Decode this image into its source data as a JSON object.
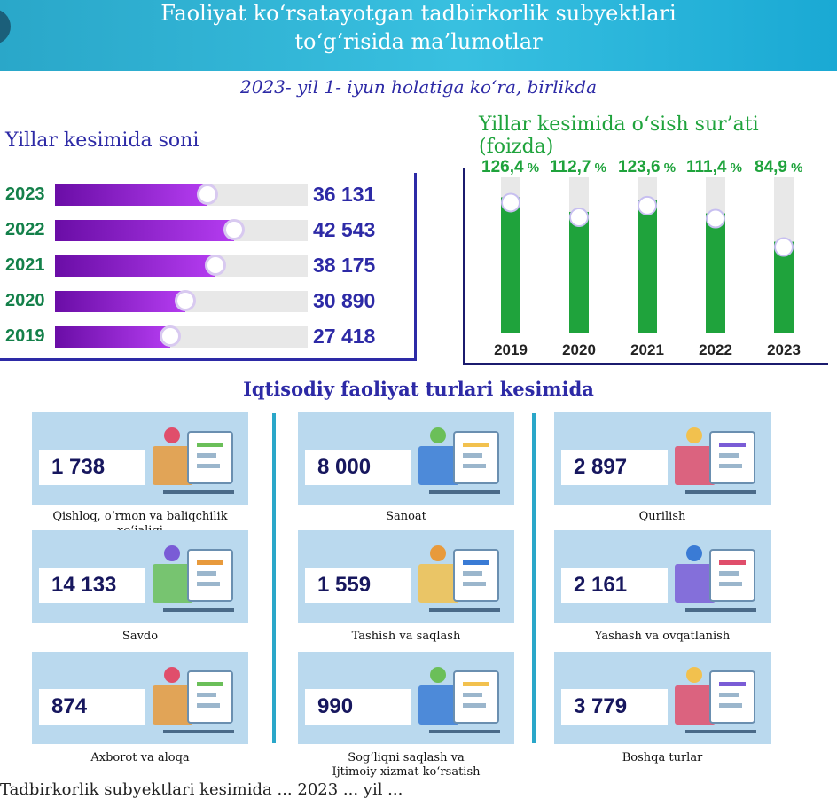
{
  "header": {
    "title_line1": "Faoliyat ko‘rsatayotgan tadbirkorlik subyektlari",
    "title_line2": "to‘g‘risida ma’lumotlar",
    "subtitle": "2023- yil 1- iyun holatiga ko‘ra, birlikda"
  },
  "left_panel": {
    "title": "Yillar kesimida soni"
  },
  "right_panel": {
    "title": "Yillar kesimida o‘sish sur’ati (foizda)"
  },
  "section_title": "Iqtisodiy faoliyat turlari kesimida",
  "footer_text": "Tadbirkorlik subyektlari kesimida ... 2023 ... yil ...",
  "colors": {
    "header": "#38c0e0",
    "purple": "#8a24c9",
    "green": "#1fa33c",
    "navy": "#2d2aa6",
    "card": "#bad9ee"
  },
  "chart_data": [
    {
      "type": "bar",
      "orientation": "horizontal",
      "title": "Yillar kesimida soni",
      "categories": [
        "2023",
        "2022",
        "2021",
        "2020",
        "2019"
      ],
      "values": [
        36131,
        42543,
        38175,
        30890,
        27418
      ],
      "value_labels": [
        "36 131",
        "42 543",
        "38 175",
        "30 890",
        "27 418"
      ],
      "xlim": [
        0,
        60000
      ]
    },
    {
      "type": "bar",
      "orientation": "vertical",
      "title": "Yillar kesimida o‘sish sur’ati (foizda)",
      "categories": [
        "2019",
        "2020",
        "2021",
        "2022",
        "2023"
      ],
      "values": [
        126.4,
        112.7,
        123.6,
        111.4,
        84.9
      ],
      "value_labels": [
        "126,4",
        "112,7",
        "123,6",
        "111,4",
        "84,9"
      ],
      "unit": "%",
      "ylim": [
        0,
        145
      ]
    }
  ],
  "activities": [
    {
      "value": "1 738",
      "label": "Qishloq, o‘rmon va baliqchilik xo‘jaligi",
      "icon": "agriculture-icon"
    },
    {
      "value": "8 000",
      "label": "Sanoat",
      "icon": "factory-icon"
    },
    {
      "value": "2 897",
      "label": "Qurilish",
      "icon": "construction-icon"
    },
    {
      "value": "14 133",
      "label": "Savdo",
      "icon": "shopping-icon"
    },
    {
      "value": "1 559",
      "label": "Tashish va saqlash",
      "icon": "truck-icon"
    },
    {
      "value": "2 161",
      "label": "Yashash va ovqatlanish",
      "icon": "food-service-icon"
    },
    {
      "value": "874",
      "label": "Axborot va aloqa",
      "icon": "it-laptop-icon"
    },
    {
      "value": "990",
      "label_line1": "Sog‘liqni saqlash va",
      "label_line2": "Ijtimoiy xizmat ko‘rsatish",
      "icon": "medical-icon"
    },
    {
      "value": "3 779",
      "label": "Boshqa turlar",
      "icon": "chart-analytics-icon"
    }
  ]
}
